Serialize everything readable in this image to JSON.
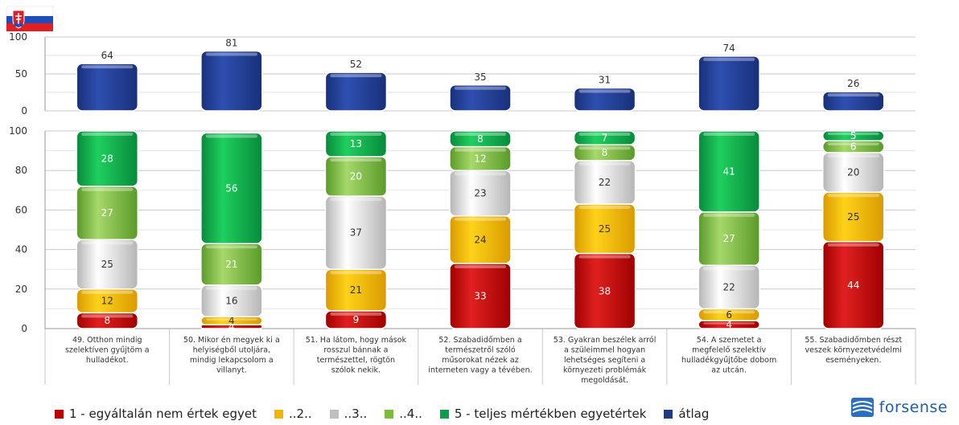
{
  "chart_data": {
    "type": "bar",
    "top_panel": {
      "series_name": "átlag",
      "ylim": [
        0,
        100
      ],
      "yticks": [
        "100",
        "50",
        "0"
      ],
      "values": [
        64,
        81,
        52,
        35,
        31,
        74,
        26
      ]
    },
    "bottom_panel": {
      "stacked": true,
      "ylim": [
        0,
        100
      ],
      "yticks": [
        "100",
        "80",
        "60",
        "40",
        "20",
        "0"
      ],
      "series": [
        {
          "name": "1 - egyáltalán nem értek egyet",
          "values": [
            8,
            2,
            9,
            33,
            38,
            4,
            44
          ]
        },
        {
          "name": "..2..",
          "values": [
            12,
            4,
            21,
            24,
            25,
            6,
            25
          ]
        },
        {
          "name": "..3..",
          "values": [
            25,
            16,
            37,
            23,
            22,
            22,
            20
          ]
        },
        {
          "name": "..4..",
          "values": [
            27,
            21,
            20,
            12,
            8,
            27,
            6
          ]
        },
        {
          "name": "5 - teljes mértékben egyetértek",
          "values": [
            28,
            56,
            13,
            8,
            7,
            41,
            5
          ]
        }
      ]
    },
    "label_exceptions": {
      "1": {
        "0": "4",
        "1": "4"
      },
      "5": {
        "0": "4"
      }
    },
    "categories": [
      [
        "49. Otthon mindig",
        "szelektíven gyűjtöm a",
        "hulladékot."
      ],
      [
        "50. Mikor én megyek ki a",
        "helyiségből utoljára,",
        "mindig lekapcsolom a",
        "villanyt."
      ],
      [
        "51. Ha látom, hogy mások",
        "rosszul bánnak a",
        "természettel, rögtön",
        "szólok nekik."
      ],
      [
        "52. Szabadidőmben a",
        "természetről szóló",
        "műsorokat nézek az",
        "interneten vagy a tévében."
      ],
      [
        "53. Gyakran beszélek arról",
        "a szüleimmel hogyan",
        "lehetséges segíteni a",
        "környezeti problémák",
        "megoldását."
      ],
      [
        "54. A szemetet a",
        "megfelelő szelektív",
        "hulladékgyűjtőbe dobom",
        "az utcán."
      ],
      [
        "55. Szabadidőmben részt",
        "veszek környezetvédelmi",
        "eseményeken."
      ]
    ],
    "legend": [
      {
        "label": "1 - egyáltalán nem értek egyet",
        "color": "#c00000"
      },
      {
        "label": "..2..",
        "color": "#f2b500"
      },
      {
        "label": "..3..",
        "color": "#bfbfbf"
      },
      {
        "label": "..4..",
        "color": "#7dbb3b"
      },
      {
        "label": "5 - teljes mértékben egyetértek",
        "color": "#0aa04a"
      },
      {
        "label": "átlag",
        "color": "#1f3a8a"
      }
    ],
    "colors": {
      "s1": [
        "#e02020",
        "#a00000"
      ],
      "s2": [
        "#ffd21a",
        "#d99a00"
      ],
      "s3": [
        "#ffffff",
        "#b5b5b5"
      ],
      "s4": [
        "#a6d86a",
        "#5a9a28"
      ],
      "s5": [
        "#1fcf5e",
        "#078a3c"
      ],
      "avg": [
        "#2f4fb0",
        "#18307a"
      ]
    },
    "legend_position": "bottom",
    "grid": true
  },
  "logo": {
    "text": "forsense",
    "icon": "forsense-logo-icon"
  },
  "flag": {
    "icon": "slovakia-flag-icon"
  }
}
